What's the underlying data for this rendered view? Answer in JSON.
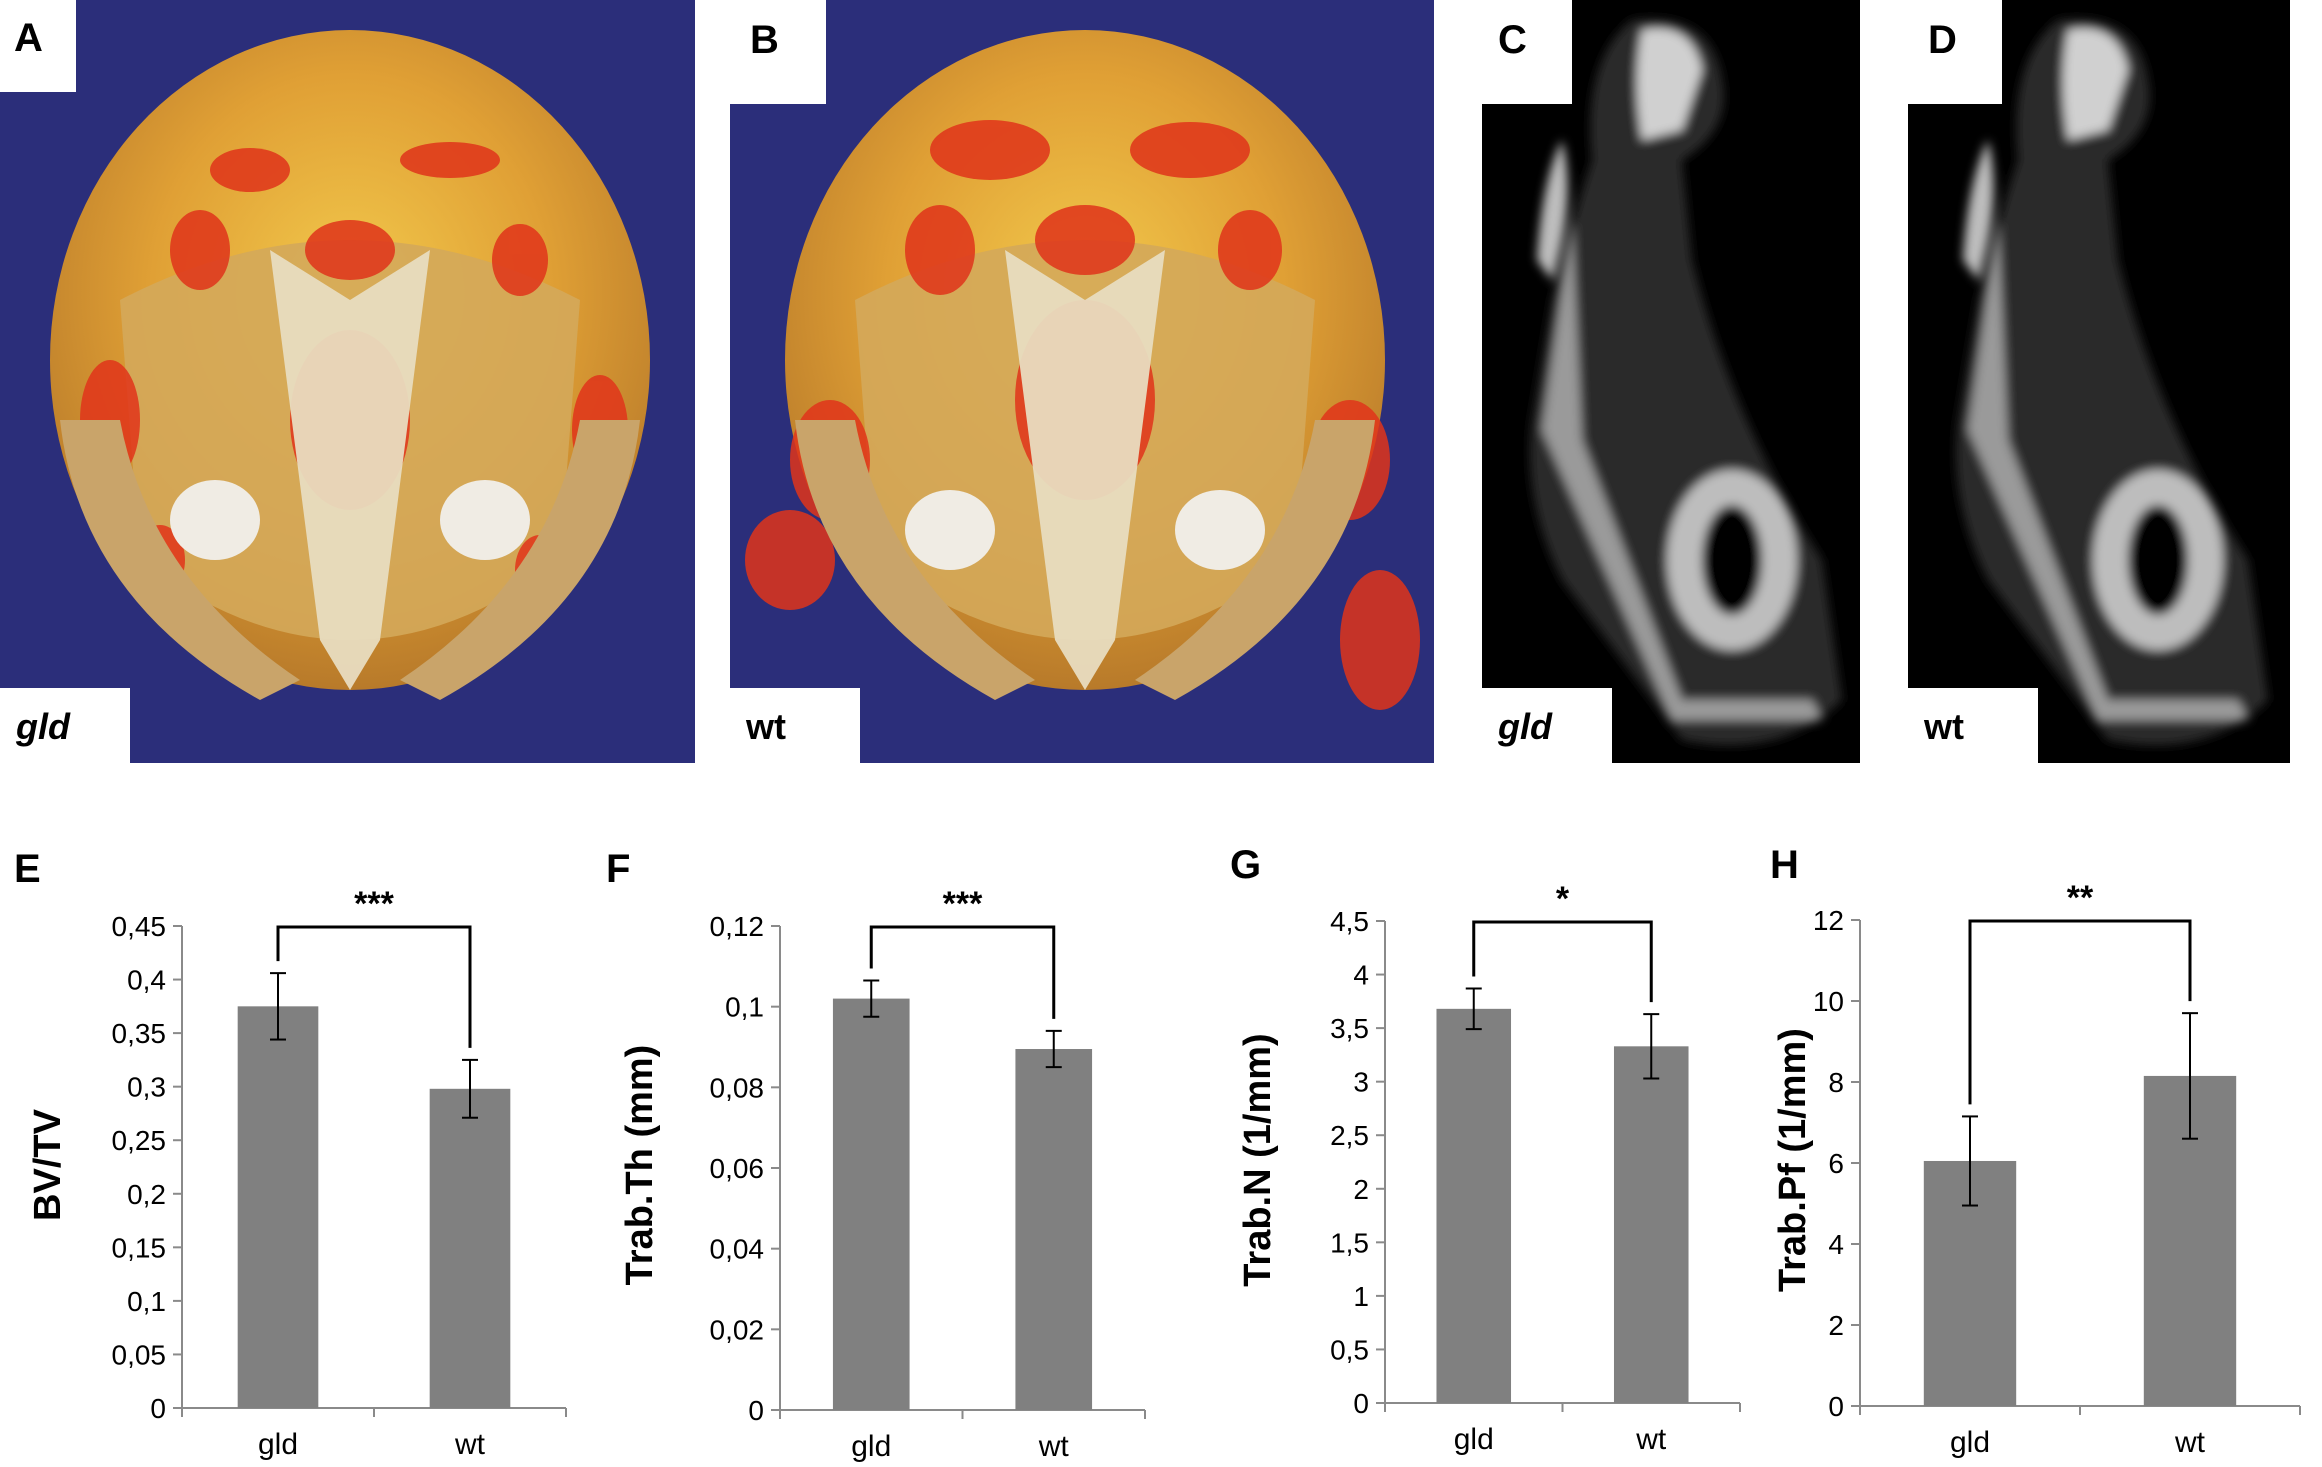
{
  "images": [
    {
      "id": "A",
      "label": "A",
      "genotype": "gld",
      "italic": true,
      "kind": "skull-3d"
    },
    {
      "id": "B",
      "label": "B",
      "genotype": "wt",
      "italic": false,
      "kind": "skull-3d"
    },
    {
      "id": "C",
      "label": "C",
      "genotype": "gld",
      "italic": true,
      "kind": "ct-section"
    },
    {
      "id": "D",
      "label": "D",
      "genotype": "wt",
      "italic": false,
      "kind": "ct-section"
    }
  ],
  "colors": {
    "bar": "#808080",
    "skull_bg": "#2b2e7a",
    "ct_bg": "#000000"
  },
  "chart_data": [
    {
      "panel": "E",
      "type": "bar",
      "categories": [
        "gld",
        "wt"
      ],
      "values": [
        0.375,
        0.298
      ],
      "errors": [
        0.031,
        0.027
      ],
      "ylabel": "BV/TV",
      "xlabel": "",
      "ylim": [
        0,
        0.45
      ],
      "ticks": [
        0,
        0.05,
        0.1,
        0.15,
        0.2,
        0.25,
        0.3,
        0.35,
        0.4,
        0.45
      ],
      "tick_labels": [
        "0",
        "0,05",
        "0,1",
        "0,15",
        "0,2",
        "0,25",
        "0,3",
        "0,35",
        "0,4",
        "0,45"
      ],
      "significance": "***"
    },
    {
      "panel": "F",
      "type": "bar",
      "categories": [
        "gld",
        "wt"
      ],
      "values": [
        0.102,
        0.0895
      ],
      "errors": [
        0.0045,
        0.0045
      ],
      "ylabel": "Trab.Th (mm)",
      "xlabel": "",
      "ylim": [
        0,
        0.12
      ],
      "ticks": [
        0,
        0.02,
        0.04,
        0.06,
        0.08,
        0.1,
        0.12
      ],
      "tick_labels": [
        "0",
        "0,02",
        "0,04",
        "0,06",
        "0,08",
        "0,1",
        "0,12"
      ],
      "significance": "***"
    },
    {
      "panel": "G",
      "type": "bar",
      "categories": [
        "gld",
        "wt"
      ],
      "values": [
        3.68,
        3.33
      ],
      "errors": [
        0.19,
        0.3
      ],
      "ylabel": "Trab.N  (1/mm)",
      "xlabel": "",
      "ylim": [
        0,
        4.5
      ],
      "ticks": [
        0,
        0.5,
        1,
        1.5,
        2,
        2.5,
        3,
        3.5,
        4,
        4.5
      ],
      "tick_labels": [
        "0",
        "0,5",
        "1",
        "1,5",
        "2",
        "2,5",
        "3",
        "3,5",
        "4",
        "4,5"
      ],
      "significance": "*"
    },
    {
      "panel": "H",
      "type": "bar",
      "categories": [
        "gld",
        "wt"
      ],
      "values": [
        6.05,
        8.15
      ],
      "errors": [
        1.1,
        1.55
      ],
      "ylabel": "Trab.Pf  (1/mm)",
      "xlabel": "",
      "ylim": [
        0,
        12
      ],
      "ticks": [
        0,
        2,
        4,
        6,
        8,
        10,
        12
      ],
      "tick_labels": [
        "0",
        "2",
        "4",
        "6",
        "8",
        "10",
        "12"
      ],
      "significance": "**"
    }
  ]
}
